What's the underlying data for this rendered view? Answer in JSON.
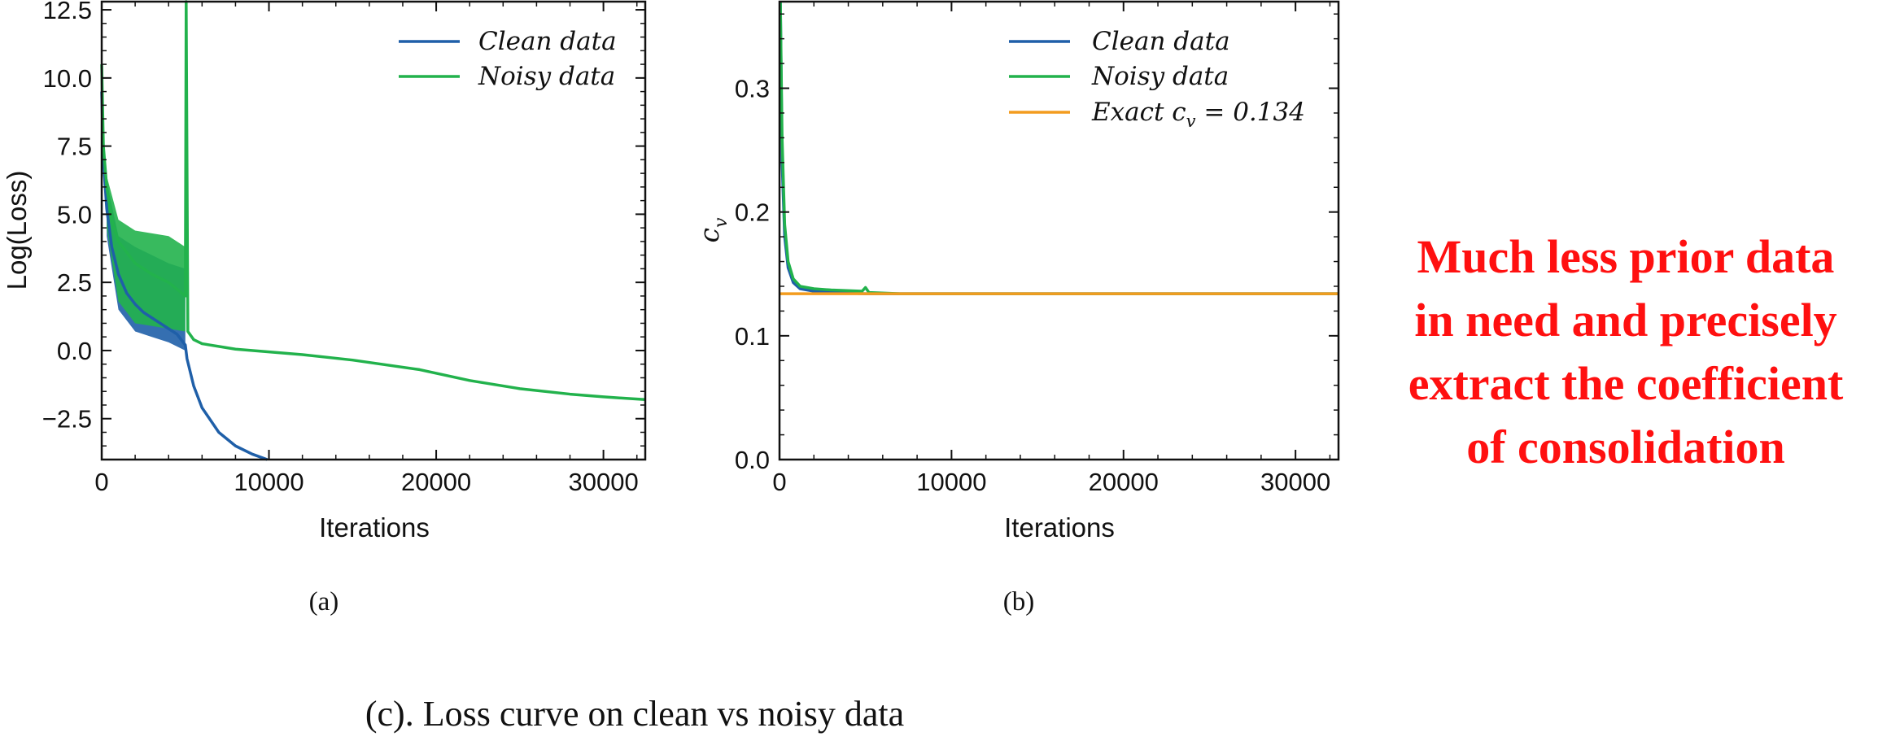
{
  "chart_data": [
    {
      "type": "line",
      "panel_label": "(a)",
      "xlabel": "Iterations",
      "ylabel": "Log(Loss)",
      "xlim": [
        0,
        32500
      ],
      "ylim": [
        -4.0,
        12.8
      ],
      "xticks": [
        0,
        10000,
        20000,
        30000
      ],
      "xtick_labels": [
        "0",
        "10000",
        "20000",
        "30000"
      ],
      "yticks": [
        -2.5,
        0.0,
        2.5,
        5.0,
        7.5,
        10.0,
        12.5
      ],
      "ytick_labels": [
        "−2.5",
        "0.0",
        "2.5",
        "5.0",
        "7.5",
        "10.0",
        "12.5"
      ],
      "legend_position": "upper-right",
      "series": [
        {
          "name": "Clean data",
          "color": "#1f5fa8",
          "x": [
            0,
            100,
            300,
            600,
            1000,
            1500,
            2000,
            2500,
            3000,
            3500,
            4000,
            4500,
            5000,
            5100,
            5500,
            6000,
            7000,
            8000,
            9000,
            9900
          ],
          "y": [
            9.5,
            7.0,
            5.2,
            3.8,
            2.8,
            2.1,
            1.7,
            1.4,
            1.2,
            1.0,
            0.8,
            0.6,
            0.2,
            -0.3,
            -1.3,
            -2.1,
            -3.0,
            -3.5,
            -3.8,
            -4.0
          ],
          "band_x": [
            300,
            1000,
            2000,
            3000,
            4000,
            5000
          ],
          "band_low": [
            4.2,
            1.5,
            0.7,
            0.5,
            0.3,
            0.0
          ],
          "band_high": [
            6.2,
            4.2,
            3.8,
            3.5,
            3.2,
            3.0
          ]
        },
        {
          "name": "Noisy data",
          "color": "#22b24c",
          "x": [
            0,
            100,
            300,
            600,
            1000,
            2000,
            3000,
            4000,
            5000,
            5050,
            5150,
            5500,
            6000,
            8000,
            10000,
            12000,
            15000,
            19000,
            22000,
            25000,
            28000,
            30000,
            32500
          ],
          "y": [
            10.5,
            7.5,
            6.0,
            4.8,
            4.0,
            3.2,
            2.8,
            2.5,
            2.0,
            12.8,
            0.7,
            0.4,
            0.25,
            0.05,
            -0.05,
            -0.15,
            -0.35,
            -0.7,
            -1.1,
            -1.4,
            -1.6,
            -1.7,
            -1.8
          ],
          "band_x": [
            300,
            1000,
            2000,
            3000,
            4000,
            5000
          ],
          "band_low": [
            4.5,
            1.8,
            1.0,
            0.9,
            0.8,
            0.7
          ],
          "band_high": [
            6.4,
            4.8,
            4.4,
            4.3,
            4.2,
            3.8
          ]
        }
      ]
    },
    {
      "type": "line",
      "panel_label": "(b)",
      "xlabel": "Iterations",
      "ylabel": "c_v",
      "xlim": [
        0,
        32500
      ],
      "ylim": [
        0.0,
        0.37
      ],
      "xticks": [
        0,
        10000,
        20000,
        30000
      ],
      "xtick_labels": [
        "0",
        "10000",
        "20000",
        "30000"
      ],
      "yticks": [
        0.0,
        0.1,
        0.2,
        0.3
      ],
      "ytick_labels": [
        "0.0",
        "0.1",
        "0.2",
        "0.3"
      ],
      "legend_position": "upper-right",
      "series": [
        {
          "name": "Clean data",
          "color": "#1f5fa8",
          "x": [
            50,
            150,
            300,
            500,
            800,
            1200,
            2000,
            3000,
            5000,
            10000,
            20000,
            32500
          ],
          "y": [
            0.37,
            0.24,
            0.18,
            0.155,
            0.143,
            0.138,
            0.136,
            0.135,
            0.134,
            0.134,
            0.134,
            0.134
          ]
        },
        {
          "name": "Noisy data",
          "color": "#22b24c",
          "x": [
            50,
            150,
            300,
            500,
            800,
            1200,
            2000,
            3000,
            4800,
            5000,
            5200,
            7000,
            10000,
            20000,
            32500
          ],
          "y": [
            0.37,
            0.26,
            0.19,
            0.16,
            0.146,
            0.14,
            0.138,
            0.137,
            0.136,
            0.139,
            0.135,
            0.134,
            0.134,
            0.134,
            0.134
          ]
        },
        {
          "name": "Exact c_v = 0.134",
          "color": "#f39c1e",
          "x": [
            0,
            32500
          ],
          "y": [
            0.134,
            0.134
          ]
        }
      ]
    }
  ],
  "labels": {
    "ylabel_a": "Log(Loss)",
    "xlabel_a": "Iterations",
    "xlabel_b": "Iterations",
    "ylabel_b_main": "c",
    "ylabel_b_sub": "v",
    "legend_a_1": "Clean data",
    "legend_a_2": "Noisy data",
    "legend_b_1": "Clean data",
    "legend_b_2": "Noisy data",
    "legend_b_3_prefix": "Exact c",
    "legend_b_3_sub": "v",
    "legend_b_3_suffix": " = 0.134",
    "panel_a": "(a)",
    "panel_b": "(b)",
    "caption": "(c). Loss curve on clean vs noisy data"
  },
  "note": {
    "color": "#ff1010",
    "lines": [
      "Much less prior data",
      "in need and precisely",
      "extract the coefficient",
      "of consolidation"
    ]
  }
}
